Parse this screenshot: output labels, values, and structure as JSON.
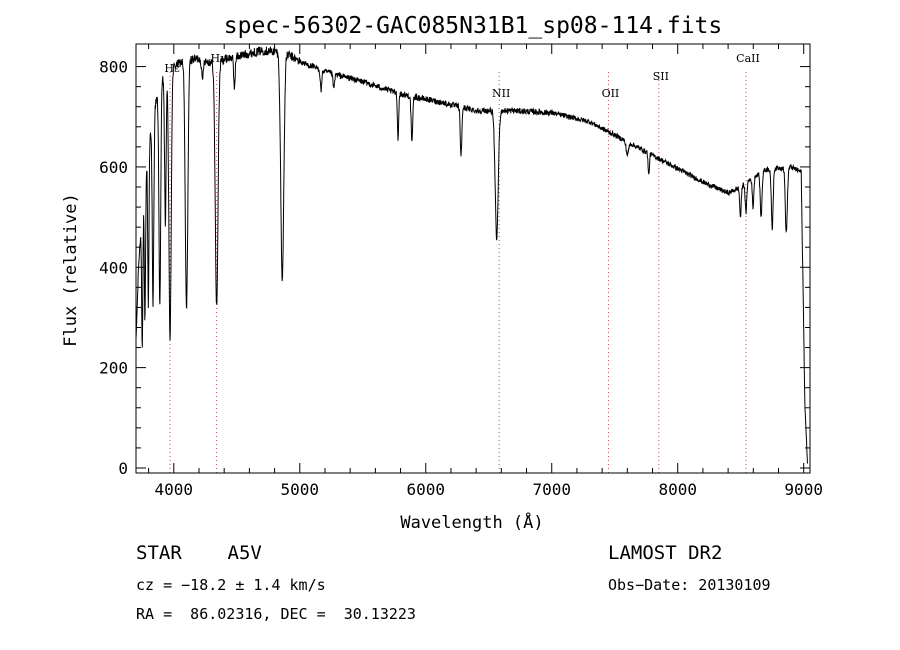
{
  "chart_data": {
    "type": "line",
    "title": "spec-56302-GAC085N31B1_sp08-114.fits",
    "xlabel": "Wavelength (Å)",
    "ylabel": "Flux (relative)",
    "xlim": [
      3700,
      9050
    ],
    "ylim": [
      -10,
      845
    ],
    "x_ticks": [
      4000,
      5000,
      6000,
      7000,
      8000,
      9000
    ],
    "y_ticks": [
      0,
      200,
      400,
      600,
      800
    ],
    "grid": false,
    "continuum": {
      "x": [
        3700,
        3720,
        3760,
        3800,
        3850,
        3900,
        3950,
        4000,
        4100,
        4200,
        4300,
        4400,
        4500,
        4600,
        4700,
        4800,
        4900,
        5000,
        5200,
        5500,
        5800,
        6100,
        6400,
        6700,
        7000,
        7300,
        7600,
        7900,
        8200,
        8400,
        8500,
        8600,
        8700,
        8800,
        8900,
        8980,
        9010,
        9030
      ],
      "y": [
        250,
        400,
        560,
        650,
        720,
        770,
        790,
        800,
        815,
        815,
        808,
        815,
        820,
        826,
        832,
        830,
        825,
        810,
        790,
        770,
        745,
        730,
        712,
        712,
        708,
        690,
        650,
        610,
        570,
        548,
        560,
        580,
        595,
        598,
        600,
        590,
        120,
        10
      ]
    },
    "absorption_lines": [
      {
        "x": 3750,
        "depth": 280,
        "width": 5
      },
      {
        "x": 3771,
        "depth": 300,
        "width": 5
      },
      {
        "x": 3798,
        "depth": 320,
        "width": 5
      },
      {
        "x": 3835,
        "depth": 380,
        "width": 6
      },
      {
        "x": 3889,
        "depth": 430,
        "width": 7
      },
      {
        "x": 3933,
        "depth": 300,
        "width": 6
      },
      {
        "x": 3970,
        "depth": 540,
        "width": 9
      },
      {
        "x": 4101,
        "depth": 500,
        "width": 10
      },
      {
        "x": 4227,
        "depth": 40,
        "width": 6
      },
      {
        "x": 4340,
        "depth": 490,
        "width": 11
      },
      {
        "x": 4481,
        "depth": 60,
        "width": 6
      },
      {
        "x": 4861,
        "depth": 450,
        "width": 12
      },
      {
        "x": 5169,
        "depth": 40,
        "width": 6
      },
      {
        "x": 5270,
        "depth": 30,
        "width": 6
      },
      {
        "x": 5780,
        "depth": 90,
        "width": 5
      },
      {
        "x": 5890,
        "depth": 95,
        "width": 6
      },
      {
        "x": 6280,
        "depth": 100,
        "width": 6
      },
      {
        "x": 6563,
        "depth": 255,
        "width": 12
      },
      {
        "x": 7600,
        "depth": 25,
        "width": 10
      },
      {
        "x": 7770,
        "depth": 45,
        "width": 5
      },
      {
        "x": 8498,
        "depth": 60,
        "width": 6
      },
      {
        "x": 8542,
        "depth": 60,
        "width": 6
      },
      {
        "x": 8598,
        "depth": 60,
        "width": 6
      },
      {
        "x": 8662,
        "depth": 90,
        "width": 7
      },
      {
        "x": 8750,
        "depth": 120,
        "width": 7
      },
      {
        "x": 8862,
        "depth": 130,
        "width": 8
      }
    ],
    "line_markers": [
      {
        "x": 3970,
        "label": "Hε"
      },
      {
        "x": 4340,
        "label": "Hγ"
      },
      {
        "x": 6583,
        "label": "NII"
      },
      {
        "x": 7450,
        "label": "OII"
      },
      {
        "x": 7850,
        "label": "SII"
      },
      {
        "x": 8542,
        "label": "CaII"
      }
    ],
    "colors": {
      "spectrum": "#000000",
      "marker": "#d94040"
    }
  },
  "info": {
    "class_label": "STAR",
    "subclass": "A5V",
    "survey": "LAMOST DR2",
    "cz": "cz = −18.2 ± 1.4 km/s",
    "obs_date": "Obs−Date: 20130109",
    "radec": "RA =  86.02316, DEC =  30.13223"
  }
}
